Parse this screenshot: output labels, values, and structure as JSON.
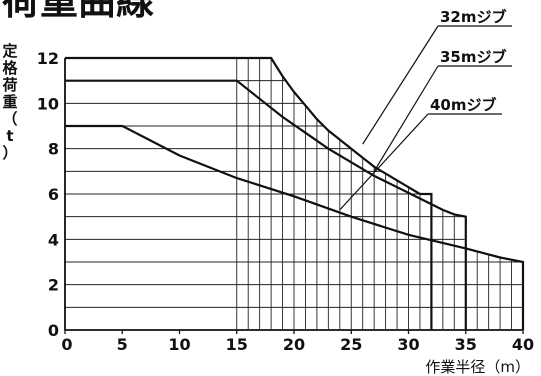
{
  "chart_data": {
    "type": "line",
    "title": "荷重曲線",
    "ylabel_chars": [
      "定",
      "格",
      "荷",
      "重",
      "（",
      "t",
      "）"
    ],
    "xlabel": "作業半径（m）",
    "xlim": [
      0,
      40
    ],
    "ylim": [
      0,
      12
    ],
    "x_ticks": [
      "0",
      "5",
      "10",
      "15",
      "20",
      "25",
      "30",
      "35",
      "40"
    ],
    "y_ticks": [
      "0",
      "2",
      "4",
      "6",
      "8",
      "10",
      "12"
    ],
    "grid": true,
    "series": [
      {
        "name": "32mジブ",
        "points": [
          [
            0,
            12
          ],
          [
            18,
            12
          ],
          [
            19,
            11.2
          ],
          [
            20,
            10.5
          ],
          [
            21,
            9.9
          ],
          [
            22,
            9.3
          ],
          [
            23,
            8.8
          ],
          [
            24,
            8.4
          ],
          [
            25,
            8.0
          ],
          [
            26,
            7.6
          ],
          [
            27,
            7.2
          ],
          [
            28,
            6.9
          ],
          [
            29,
            6.6
          ],
          [
            30,
            6.3
          ],
          [
            31,
            6.0
          ],
          [
            32,
            6.0
          ]
        ],
        "drop_to_zero_at": 32
      },
      {
        "name": "35mジブ",
        "points": [
          [
            0,
            11
          ],
          [
            15,
            11
          ],
          [
            17,
            10.2
          ],
          [
            19,
            9.4
          ],
          [
            21,
            8.7
          ],
          [
            23,
            8.0
          ],
          [
            25,
            7.4
          ],
          [
            27,
            6.8
          ],
          [
            29,
            6.3
          ],
          [
            31,
            5.8
          ],
          [
            33,
            5.3
          ],
          [
            34,
            5.1
          ],
          [
            35,
            5.0
          ]
        ],
        "drop_to_zero_at": 35
      },
      {
        "name": "40mジブ",
        "points": [
          [
            0,
            9
          ],
          [
            5,
            9
          ],
          [
            10,
            7.7
          ],
          [
            15,
            6.7
          ],
          [
            20,
            5.9
          ],
          [
            25,
            5.0
          ],
          [
            30,
            4.2
          ],
          [
            35,
            3.6
          ],
          [
            38,
            3.2
          ],
          [
            40,
            3.0
          ]
        ],
        "drop_to_zero_at": 40
      }
    ]
  }
}
